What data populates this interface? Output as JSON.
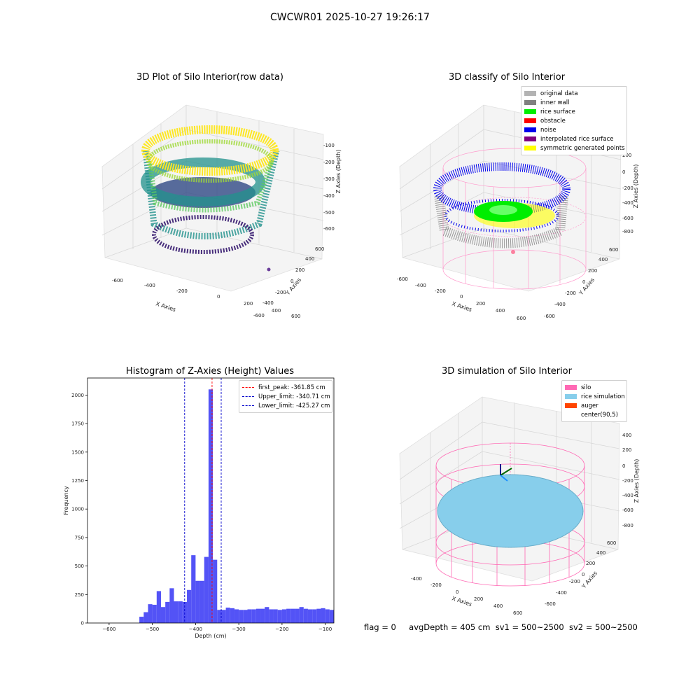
{
  "figure_title": "CWCWR01 2025-10-27 19:26:17",
  "footer": {
    "flag": "flag = 0",
    "avg_depth": "avgDepth = 405 cm",
    "sv1": "sv1 = 500~2500",
    "sv2": "sv2 = 500~2500"
  },
  "chart_data": [
    {
      "type": "scatter3d",
      "title": "3D Plot of Silo Interior(row data)",
      "xlabel": "X Axies",
      "ylabel": "Y Axies",
      "zlabel": "Z Axies (Depth)",
      "x_ticks": [
        "-600",
        "-400",
        "-200",
        "0",
        "200",
        "400",
        "600"
      ],
      "y_ticks": [
        "-600",
        "-400",
        "-200",
        "0",
        "200",
        "400",
        "600"
      ],
      "z_ticks": [
        "-100",
        "-200",
        "-300",
        "-400",
        "-500",
        "-600"
      ],
      "xlim": [
        -650,
        650
      ],
      "ylim": [
        -650,
        650
      ],
      "zlim": [
        -700,
        -80
      ],
      "colormap": "viridis"
    },
    {
      "type": "scatter3d",
      "title": "3D classify of Silo Interior",
      "xlabel": "X Axies",
      "ylabel": "Y Axies",
      "zlabel": "Z Axies (Depth)",
      "x_ticks": [
        "-600",
        "-400",
        "-200",
        "0",
        "200",
        "400",
        "600"
      ],
      "y_ticks": [
        "-600",
        "-400",
        "-200",
        "0",
        "200",
        "400",
        "600"
      ],
      "z_ticks": [
        "200",
        "0",
        "-200",
        "-400",
        "-600",
        "-800"
      ],
      "legend": [
        {
          "label": "original data",
          "color": "#b3b3b3"
        },
        {
          "label": "inner wall",
          "color": "#808080"
        },
        {
          "label": "rice surface",
          "color": "#00ee00"
        },
        {
          "label": "obstacle",
          "color": "#ff0000"
        },
        {
          "label": "noise",
          "color": "#0000ee"
        },
        {
          "label": "interpolated rice surface",
          "color": "#800080"
        },
        {
          "label": "symmetric generated points",
          "color": "#ffff00"
        }
      ],
      "legend_position": "top-right",
      "silo_wire_color": "#ff99cc"
    },
    {
      "type": "bar",
      "title": "Histogram of Z-Axies (Height) Values",
      "xlabel": "Depth (cm)",
      "ylabel": "Frequency",
      "bin_start": -530,
      "bin_width": 10,
      "values": [
        55,
        95,
        165,
        160,
        280,
        140,
        185,
        305,
        190,
        190,
        185,
        290,
        595,
        370,
        370,
        580,
        2050,
        555,
        115,
        115,
        135,
        130,
        120,
        115,
        115,
        120,
        120,
        125,
        125,
        140,
        120,
        120,
        115,
        120,
        125,
        125,
        125,
        140,
        125,
        120,
        120,
        125,
        130,
        120,
        115
      ],
      "xlim": [
        -650,
        -80
      ],
      "ylim": [
        0,
        2150
      ],
      "x_ticks": [
        -600,
        -500,
        -400,
        -300,
        -200,
        -100
      ],
      "y_ticks": [
        0,
        250,
        500,
        750,
        1000,
        1250,
        1500,
        1750,
        2000
      ],
      "bar_color": "#4a4af5",
      "vlines": [
        {
          "label": "first_peak: -361.85 cm",
          "x": -361.85,
          "color": "#ff0000"
        },
        {
          "label": "Upper_limit: -340.71 cm",
          "x": -340.71,
          "color": "#0000cc"
        },
        {
          "label": "Lower_limit: -425.27 cm",
          "x": -425.27,
          "color": "#0000cc"
        }
      ],
      "legend_position": "top-right"
    },
    {
      "type": "surface3d",
      "title": "3D simulation of Silo Interior",
      "xlabel": "X Axies",
      "ylabel": "Y Axies",
      "zlabel": "Z Axies (Depth)",
      "x_ticks": [
        "-400",
        "-200",
        "0",
        "200",
        "400",
        "600"
      ],
      "y_ticks": [
        "-600",
        "-400",
        "-200",
        "0",
        "200",
        "400",
        "600"
      ],
      "z_ticks": [
        "400",
        "200",
        "0",
        "-200",
        "-400",
        "-600",
        "-800"
      ],
      "legend": [
        {
          "label": "silo",
          "color": "#ff69b4"
        },
        {
          "label": "rice simulation",
          "color": "#87ceeb"
        },
        {
          "label": "auger",
          "color": "#ff4500"
        },
        {
          "label": "center(90,5)",
          "color": "#ffffff"
        }
      ],
      "legend_position": "top-right"
    }
  ]
}
